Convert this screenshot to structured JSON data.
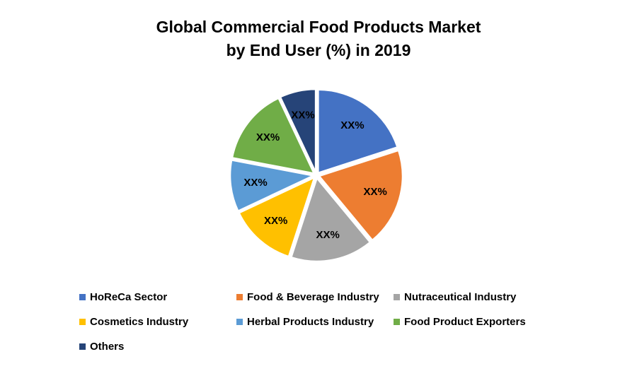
{
  "title": {
    "line1": "Global Commercial Food Products Market",
    "line2": "by End User (%) in 2019"
  },
  "chart_data": {
    "type": "pie",
    "title": "Global Commercial Food Products Market by End User (%) in 2019",
    "value_labels_masked": true,
    "start_angle_deg": 0,
    "direction": "clockwise",
    "legend_position": "bottom",
    "slices": [
      {
        "label": "HoReCa Sector",
        "value_label": "XX%",
        "est_percent": 20,
        "color": "#4472C4"
      },
      {
        "label": "Food & Beverage Industry",
        "value_label": "XX%",
        "est_percent": 19,
        "color": "#ED7D31"
      },
      {
        "label": "Nutraceutical Industry",
        "value_label": "XX%",
        "est_percent": 16,
        "color": "#A5A5A5"
      },
      {
        "label": "Cosmetics Industry",
        "value_label": "XX%",
        "est_percent": 13,
        "color": "#FFC000"
      },
      {
        "label": "Herbal Products Industry",
        "value_label": "XX%",
        "est_percent": 10,
        "color": "#5B9BD5"
      },
      {
        "label": "Food Product Exporters",
        "value_label": "XX%",
        "est_percent": 15,
        "color": "#70AD47"
      },
      {
        "label": "Others",
        "value_label": "XX%",
        "est_percent": 7,
        "color": "#264478"
      }
    ]
  }
}
